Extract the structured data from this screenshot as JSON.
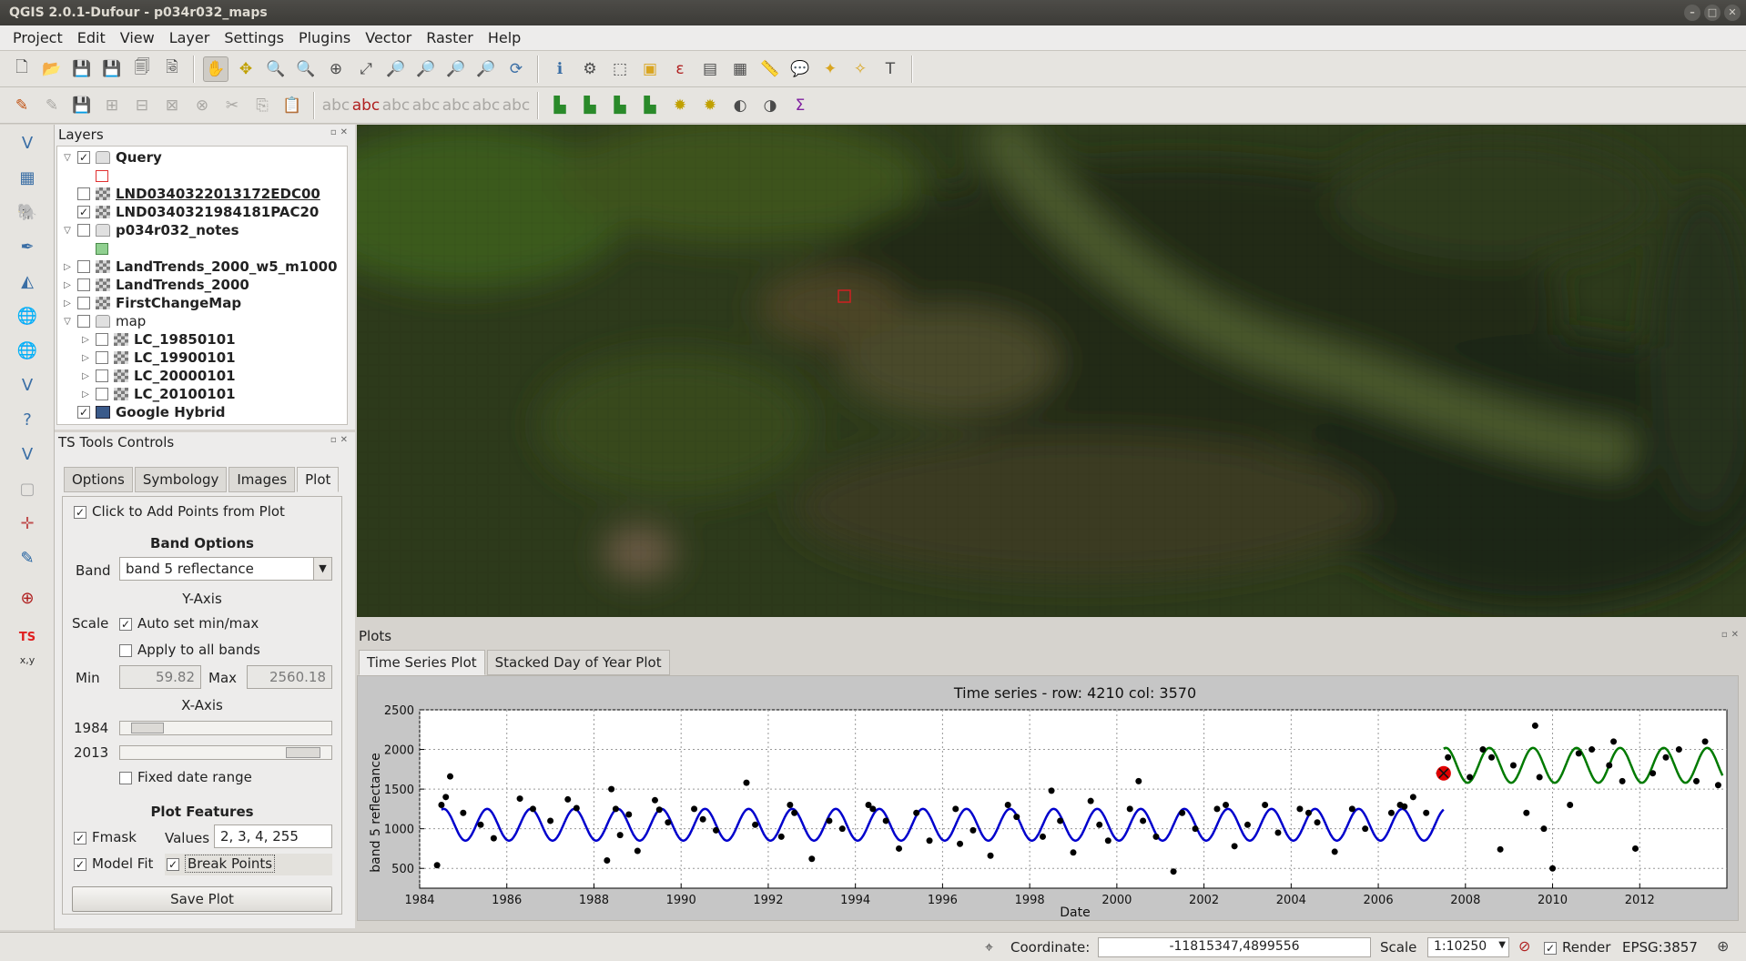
{
  "window": {
    "title": "QGIS 2.0.1-Dufour - p034r032_maps",
    "controls": [
      "–",
      "□",
      "✕"
    ]
  },
  "menubar": {
    "items": [
      "Project",
      "Edit",
      "View",
      "Layer",
      "Settings",
      "Plugins",
      "Vector",
      "Raster",
      "Help"
    ]
  },
  "layers_panel": {
    "title": "Layers",
    "items": [
      {
        "label": "Query",
        "checked": true,
        "expanded": true
      },
      {
        "label": "LND0340322013172EDC00",
        "checked": false
      },
      {
        "label": "LND0340321984181PAC20",
        "checked": true
      },
      {
        "label": "p034r032_notes",
        "checked": false,
        "expanded": true
      },
      {
        "label": "LandTrends_2000_w5_m1000",
        "checked": false
      },
      {
        "label": "LandTrends_2000",
        "checked": false
      },
      {
        "label": "FirstChangeMap",
        "checked": false
      },
      {
        "label": "map",
        "checked": false,
        "expanded": true
      },
      {
        "label": "LC_19850101",
        "checked": false
      },
      {
        "label": "LC_19900101",
        "checked": false
      },
      {
        "label": "LC_20000101",
        "checked": false
      },
      {
        "label": "LC_20100101",
        "checked": false
      },
      {
        "label": "Google Hybrid",
        "checked": true
      }
    ]
  },
  "ts_controls": {
    "title": "TS Tools Controls",
    "tabs": [
      "Options",
      "Symbology",
      "Images",
      "Plot"
    ],
    "active_tab": "Plot",
    "click_to_add": "Click to Add Points from Plot",
    "band_options_heading": "Band Options",
    "band_label": "Band",
    "band_value": "band 5 reflectance",
    "y_axis_heading": "Y-Axis",
    "scale_label": "Scale",
    "auto_set": "Auto set min/max",
    "apply_all": "Apply to all bands",
    "min_label": "Min",
    "min_value": "59.82",
    "max_label": "Max",
    "max_value": "2560.18",
    "x_axis_heading": "X-Axis",
    "x_start": "1984",
    "x_end": "2013",
    "fixed_range": "Fixed date range",
    "plot_features_heading": "Plot Features",
    "fmask_label": "Fmask",
    "values_label": "Values",
    "values_value": "2, 3, 4, 255",
    "model_fit_label": "Model Fit",
    "break_points_label": "Break Points",
    "save_plot": "Save Plot"
  },
  "plots_panel": {
    "title": "Plots",
    "tabs": [
      "Time Series Plot",
      "Stacked Day of Year Plot"
    ],
    "active_tab": "Time Series Plot"
  },
  "chart_data": {
    "type": "scatter",
    "title": "Time series - row: 4210 col: 3570",
    "xlabel": "Date",
    "ylabel": "band 5 reflectance",
    "xlim": [
      1984,
      2014
    ],
    "ylim": [
      250,
      2500
    ],
    "xticks": [
      1984,
      1986,
      1988,
      1990,
      1992,
      1994,
      1996,
      1998,
      2000,
      2002,
      2004,
      2006,
      2008,
      2010,
      2012
    ],
    "yticks": [
      500,
      1000,
      1500,
      2000,
      2500
    ],
    "grid": true,
    "series": [
      {
        "color": "#000000",
        "kind": "points",
        "x": [
          1984.4,
          1984.5,
          1984.6,
          1984.7,
          1985.0,
          1985.4,
          1985.7,
          1986.3,
          1986.6,
          1987.0,
          1987.4,
          1987.6,
          1988.3,
          1988.4,
          1988.5,
          1988.6,
          1988.8,
          1989.0,
          1989.4,
          1989.5,
          1989.7,
          1990.3,
          1990.5,
          1990.8,
          1991.5,
          1991.7,
          1992.3,
          1992.5,
          1992.6,
          1993.0,
          1993.4,
          1993.7,
          1994.3,
          1994.4,
          1994.7,
          1995.0,
          1995.4,
          1995.7,
          1996.3,
          1996.4,
          1996.7,
          1997.1,
          1997.5,
          1997.7,
          1998.3,
          1998.5,
          1998.7,
          1999.0,
          1999.4,
          1999.6,
          1999.8,
          2000.3,
          2000.5,
          2000.6,
          2000.9,
          2001.3,
          2001.5,
          2001.8,
          2002.3,
          2002.5,
          2002.7,
          2003.0,
          2003.4,
          2003.7,
          2004.2,
          2004.4,
          2004.6,
          2005.0,
          2005.4,
          2005.7,
          2006.3,
          2006.5,
          2006.6,
          2006.8,
          2007.1,
          2007.4,
          2007.6,
          2008.1,
          2008.4,
          2008.6,
          2008.8,
          2009.1,
          2009.4,
          2009.6,
          2009.7,
          2009.8,
          2010.0,
          2010.4,
          2010.6,
          2010.9,
          2011.3,
          2011.4,
          2011.6,
          2011.9,
          2012.3,
          2012.6,
          2012.9,
          2013.3,
          2013.5,
          2013.8
        ],
        "y": [
          540,
          1300,
          1400,
          1660,
          1200,
          1050,
          880,
          1380,
          1250,
          1100,
          1370,
          1260,
          600,
          1500,
          1250,
          920,
          1180,
          720,
          1360,
          1240,
          1080,
          1250,
          1120,
          980,
          1580,
          1050,
          900,
          1300,
          1200,
          620,
          1100,
          1000,
          1300,
          1250,
          1100,
          750,
          1200,
          850,
          1250,
          810,
          980,
          660,
          1300,
          1150,
          900,
          1480,
          1100,
          700,
          1350,
          1050,
          850,
          1250,
          1600,
          1100,
          900,
          460,
          1200,
          1000,
          1250,
          1300,
          780,
          1050,
          1300,
          950,
          1250,
          1200,
          1080,
          710,
          1250,
          1000,
          1200,
          1300,
          1280,
          1400,
          1200,
          1700,
          1900,
          1650,
          2000,
          1900,
          740,
          1800,
          1200,
          2300,
          1650,
          1000,
          500,
          1300,
          1950,
          2000,
          1800,
          2100,
          1600,
          750,
          1700,
          1900,
          2000,
          1600,
          2100,
          1550
        ]
      },
      {
        "color": "#0000cc",
        "kind": "model_fit",
        "x_range": [
          1984.5,
          2007.5
        ],
        "mean": 1050,
        "amplitude": 200,
        "period": 1
      },
      {
        "color": "#007a00",
        "kind": "model_fit",
        "x_range": [
          2007.5,
          2013.9
        ],
        "mean": 1800,
        "amplitude": 220,
        "period": 1
      },
      {
        "color": "#e00000",
        "kind": "break_point",
        "x": [
          2007.5
        ],
        "y": [
          1700
        ]
      }
    ]
  },
  "statusbar": {
    "coordinate_label": "Coordinate:",
    "coordinate_value": "-11815347,4899556",
    "scale_label": "Scale",
    "scale_value": "1:10250",
    "render_label": "Render",
    "epsg": "EPSG:3857"
  }
}
